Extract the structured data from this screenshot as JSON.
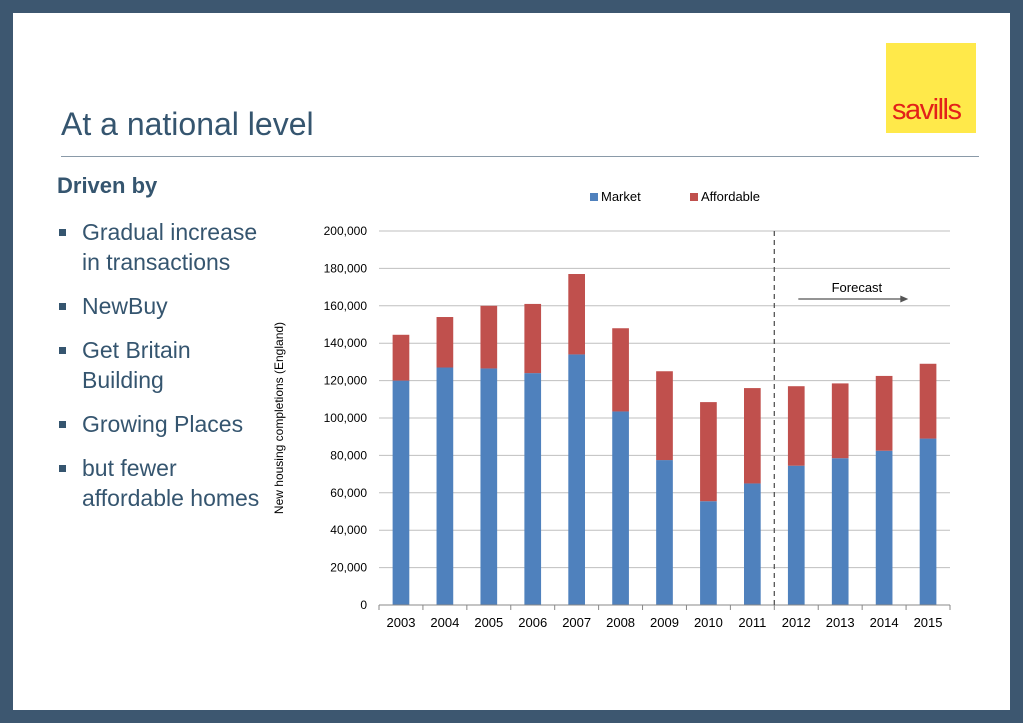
{
  "slide": {
    "title": "At a national level",
    "heading": "Driven by",
    "bullets": [
      "Gradual increase in transactions",
      "NewBuy",
      "Get Britain Building",
      "Growing Places",
      "but fewer affordable homes"
    ]
  },
  "logo": {
    "text": "savills",
    "bg": "#ffe94a",
    "color": "#e32119"
  },
  "colors": {
    "market": "#4f81bd",
    "affordable": "#c0504d",
    "text": "#35556f",
    "frame": "#3d5770"
  },
  "chart_data": {
    "type": "bar",
    "stacked": true,
    "categories": [
      "2003",
      "2004",
      "2005",
      "2006",
      "2007",
      "2008",
      "2009",
      "2010",
      "2011",
      "2012",
      "2013",
      "2014",
      "2015"
    ],
    "series": [
      {
        "name": "Market",
        "color": "#4f81bd",
        "values": [
          120000,
          127000,
          126500,
          124000,
          134000,
          103500,
          77500,
          55500,
          65000,
          74500,
          78500,
          82500,
          89000
        ]
      },
      {
        "name": "Affordable",
        "color": "#c0504d",
        "values": [
          24500,
          27000,
          33500,
          37000,
          43000,
          44500,
          47500,
          53000,
          51000,
          42500,
          40000,
          40000,
          40000
        ]
      }
    ],
    "ylabel": "New housing completions (England)",
    "ylim": [
      0,
      200000
    ],
    "yticks": [
      "0",
      "20,000",
      "40,000",
      "60,000",
      "80,000",
      "100,000",
      "120,000",
      "140,000",
      "160,000",
      "180,000",
      "200,000"
    ],
    "grid": true,
    "legend": "top-center",
    "annotation": {
      "text": "Forecast",
      "divider_after": "2011"
    }
  }
}
